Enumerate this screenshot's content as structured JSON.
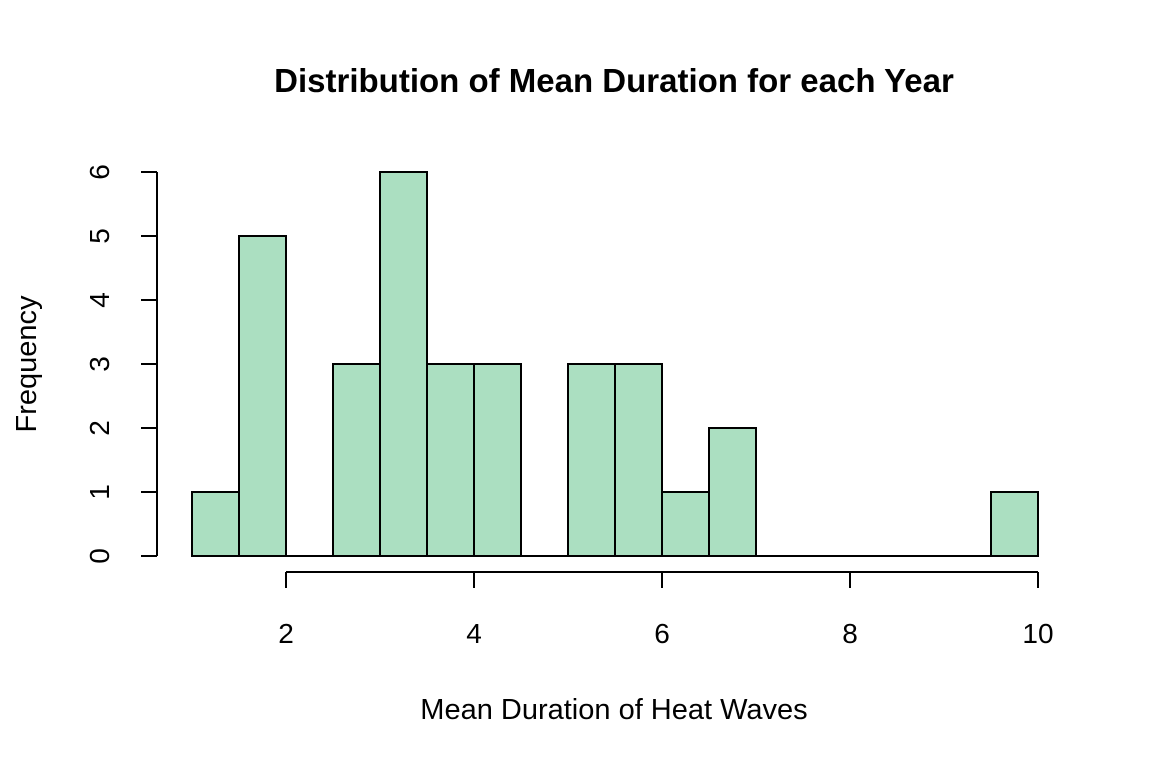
{
  "chart_data": {
    "type": "bar",
    "subtype": "histogram",
    "title": "Distribution of Mean Duration for each Year",
    "xlabel": "Mean Duration of Heat Waves",
    "ylabel": "Frequency",
    "bin_width": 0.5,
    "bins": [
      {
        "x0": 1.0,
        "x1": 1.5,
        "count": 1
      },
      {
        "x0": 1.5,
        "x1": 2.0,
        "count": 5
      },
      {
        "x0": 2.0,
        "x1": 2.5,
        "count": 0
      },
      {
        "x0": 2.5,
        "x1": 3.0,
        "count": 3
      },
      {
        "x0": 3.0,
        "x1": 3.5,
        "count": 6
      },
      {
        "x0": 3.5,
        "x1": 4.0,
        "count": 3
      },
      {
        "x0": 4.0,
        "x1": 4.5,
        "count": 3
      },
      {
        "x0": 4.5,
        "x1": 5.0,
        "count": 0
      },
      {
        "x0": 5.0,
        "x1": 5.5,
        "count": 3
      },
      {
        "x0": 5.5,
        "x1": 6.0,
        "count": 3
      },
      {
        "x0": 6.0,
        "x1": 6.5,
        "count": 1
      },
      {
        "x0": 6.5,
        "x1": 7.0,
        "count": 2
      },
      {
        "x0": 7.0,
        "x1": 7.5,
        "count": 0
      },
      {
        "x0": 7.5,
        "x1": 8.0,
        "count": 0
      },
      {
        "x0": 8.0,
        "x1": 8.5,
        "count": 0
      },
      {
        "x0": 8.5,
        "x1": 9.0,
        "count": 0
      },
      {
        "x0": 9.0,
        "x1": 9.5,
        "count": 0
      },
      {
        "x0": 9.5,
        "x1": 10.0,
        "count": 1
      }
    ],
    "x_ticks": [
      "2",
      "4",
      "6",
      "8",
      "10"
    ],
    "y_ticks": [
      "0",
      "1",
      "2",
      "3",
      "4",
      "5",
      "6"
    ],
    "xlim": [
      1,
      10
    ],
    "ylim": [
      0,
      6
    ],
    "x_axis_range": [
      2,
      10
    ],
    "bar_color": "#abdfc1",
    "border_color": "#000000",
    "grid": false,
    "legend": "none"
  }
}
